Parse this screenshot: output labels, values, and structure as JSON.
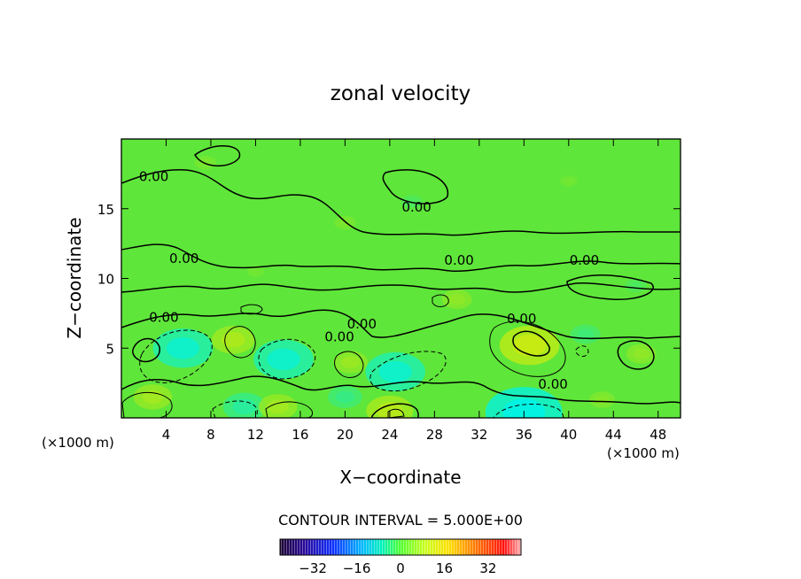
{
  "chart_data": {
    "type": "heatmap",
    "title": "zonal velocity",
    "xlabel": "X−coordinate",
    "ylabel": "Z−coordinate",
    "x_unit_left": "(×1000 m)",
    "x_unit_right": "(×1000 m)",
    "xlim": [
      0,
      50
    ],
    "ylim": [
      0,
      20
    ],
    "x_ticks": [
      4,
      8,
      12,
      16,
      20,
      24,
      28,
      32,
      36,
      40,
      44,
      48
    ],
    "y_ticks": [
      5,
      10,
      15
    ],
    "contour_interval_text": "CONTOUR INTERVAL = 5.000E+00",
    "contour_label": "0.00",
    "colorbar": {
      "ticks": [
        -32,
        -16,
        0,
        16,
        32
      ],
      "tick_labels": [
        "−32",
        "−16",
        "0",
        "16",
        "32"
      ],
      "range": [
        -44,
        44
      ]
    },
    "zero_contour_labels": [
      {
        "x": 2.9,
        "z": 17.0
      },
      {
        "x": 5.6,
        "z": 11.1
      },
      {
        "x": 3.8,
        "z": 6.9
      },
      {
        "x": 21.5,
        "z": 6.4
      },
      {
        "x": 19.5,
        "z": 5.5
      },
      {
        "x": 26.4,
        "z": 14.8
      },
      {
        "x": 30.2,
        "z": 11.0
      },
      {
        "x": 35.8,
        "z": 6.8
      },
      {
        "x": 38.6,
        "z": 2.1
      },
      {
        "x": 41.4,
        "z": 11.0
      }
    ],
    "features": [
      {
        "kind": "negative",
        "x": 5.5,
        "z": 5.0,
        "value": -12
      },
      {
        "kind": "negative",
        "x": 14.5,
        "z": 4.2,
        "value": -12
      },
      {
        "kind": "negative",
        "x": 24.5,
        "z": 3.3,
        "value": -12
      },
      {
        "kind": "negative",
        "x": 36.0,
        "z": 0.4,
        "value": -16
      },
      {
        "kind": "negative",
        "x": 11.0,
        "z": 0.8,
        "value": -8
      },
      {
        "kind": "negative",
        "x": 41.5,
        "z": 6.0,
        "value": -5
      },
      {
        "kind": "negative",
        "x": 20.0,
        "z": 1.5,
        "value": -6
      },
      {
        "kind": "positive",
        "x": 36.5,
        "z": 5.2,
        "value": 12
      },
      {
        "kind": "positive",
        "x": 10.0,
        "z": 5.6,
        "value": 8
      },
      {
        "kind": "positive",
        "x": 2.8,
        "z": 1.5,
        "value": 7
      },
      {
        "kind": "positive",
        "x": 14.0,
        "z": 0.8,
        "value": 7
      },
      {
        "kind": "positive",
        "x": 24.0,
        "z": 0.5,
        "value": 9
      },
      {
        "kind": "positive",
        "x": 30.0,
        "z": 8.5,
        "value": 5
      },
      {
        "kind": "positive",
        "x": 20.5,
        "z": 4.0,
        "value": 6
      },
      {
        "kind": "positive",
        "x": 46.5,
        "z": 4.6,
        "value": 5
      },
      {
        "kind": "positive",
        "x": 43.0,
        "z": 1.3,
        "value": 4
      },
      {
        "kind": "positive",
        "x": 7.5,
        "z": 18.3,
        "value": 3
      },
      {
        "kind": "positive",
        "x": 20.0,
        "z": 14.0,
        "value": 3
      },
      {
        "kind": "positive",
        "x": 12.0,
        "z": 10.5,
        "value": 2
      },
      {
        "kind": "positive",
        "x": 40.0,
        "z": 17.0,
        "value": 2
      },
      {
        "kind": "negative",
        "x": 26.0,
        "z": 15.5,
        "value": -3
      },
      {
        "kind": "negative",
        "x": 46.0,
        "z": 9.5,
        "value": -3
      }
    ]
  }
}
